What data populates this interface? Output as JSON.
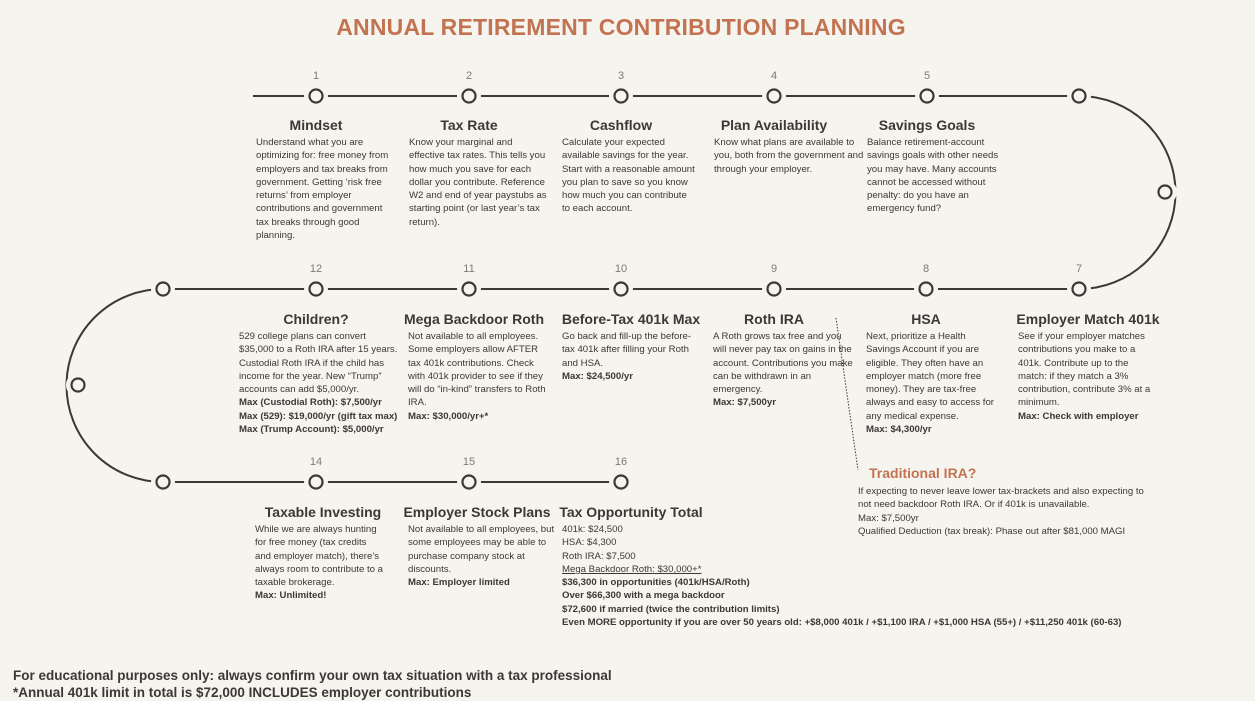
{
  "title": "ANNUAL RETIREMENT CONTRIBUTION PLANNING",
  "colors": {
    "accent": "#c27352",
    "line": "#3b3835",
    "background": "#f6f4ef"
  },
  "steps": [
    {
      "number": "1",
      "title": "Mindset",
      "lines": [
        {
          "t": "Understand what you are optimizing for: free money from employers and tax breaks from government. Getting ‘risk free returns’ from employer contributions and government tax breaks through good planning."
        }
      ]
    },
    {
      "number": "2",
      "title": "Tax Rate",
      "lines": [
        {
          "t": "Know your marginal and effective tax rates. This tells you how much you save for each dollar you contribute. Reference W2 and end of year paystubs as starting point (or last year’s tax return)."
        }
      ]
    },
    {
      "number": "3",
      "title": "Cashflow",
      "lines": [
        {
          "t": "Calculate your expected available savings for the year. Start with a reasonable amount you plan to save so you know how much you can contribute to each account."
        }
      ]
    },
    {
      "number": "4",
      "title": "Plan Availability",
      "lines": [
        {
          "t": "Know what plans are available to you, both from the government and through your employer."
        }
      ]
    },
    {
      "number": "5",
      "title": "Savings Goals",
      "lines": [
        {
          "t": "Balance retirement-account savings goals with other needs you may have. Many accounts cannot be accessed without penalty: do you have an emergency fund?"
        }
      ]
    },
    {
      "number": "7",
      "title": "Employer Match 401k",
      "lines": [
        {
          "t": "See if your employer matches contributions you make to a 401k. Contribute up to the match: if they match a 3% contribution, contribute 3% at a minimum."
        },
        {
          "t": "Max: Check with employer",
          "bold": true
        }
      ]
    },
    {
      "number": "8",
      "title": "HSA",
      "lines": [
        {
          "t": "Next, prioritize a Health Savings Account if you are eligible. They often have an employer match (more free money). They are tax-free always and easy to access for any medical expense."
        },
        {
          "t": "Max: $4,300/yr",
          "bold": true
        }
      ]
    },
    {
      "number": "9",
      "title": "Roth IRA",
      "lines": [
        {
          "t": "A Roth grows tax free and you will never pay tax on gains in the account. Contributions you make can be withdrawn in an emergency."
        },
        {
          "t": "Max: $7,500yr",
          "bold": true
        }
      ]
    },
    {
      "number": "10",
      "title": "Before-Tax 401k Max",
      "lines": [
        {
          "t": "Go back and fill-up the before-tax 401k after filling your Roth and HSA."
        },
        {
          "t": "Max: $24,500/yr",
          "bold": true
        }
      ]
    },
    {
      "number": "11",
      "title": "Mega Backdoor Roth",
      "lines": [
        {
          "t": "Not available to all employees. Some employers allow AFTER tax 401k contributions. Check with 401k provider to see if they will do “in-kind” transfers to Roth IRA."
        },
        {
          "t": "Max: $30,000/yr+*",
          "bold": true
        }
      ]
    },
    {
      "number": "12",
      "title": "Children?",
      "lines": [
        {
          "t": "529 college plans can convert $35,000 to a Roth IRA after 15 years. Custodial Roth IRA if the child has income for the year. New “Trump” accounts can add $5,000/yr."
        },
        {
          "t": "Max (Custodial Roth): $7,500/yr",
          "bold": true
        },
        {
          "t": "Max (529): $19,000/yr (gift tax max)",
          "bold": true
        },
        {
          "t": "Max (Trump Account): $5,000/yr",
          "bold": true
        }
      ]
    },
    {
      "number": "14",
      "title": "Taxable Investing",
      "lines": [
        {
          "t": "While we are always hunting for free money (tax credits and employer match), there’s always room to contribute to a taxable brokerage."
        },
        {
          "t": "Max: Unlimited!",
          "bold": true
        }
      ]
    },
    {
      "number": "15",
      "title": "Employer Stock Plans",
      "lines": [
        {
          "t": "Not available to all employees, but some employees may be able to purchase company stock at discounts."
        },
        {
          "t": "Max: Employer limited",
          "bold": true
        }
      ]
    },
    {
      "number": "16",
      "title": "Tax Opportunity Total",
      "lines": [
        {
          "t": "401k: $24,500"
        },
        {
          "t": "HSA: $4,300"
        },
        {
          "t": "Roth IRA: $7,500"
        },
        {
          "t": "Mega Backdoor Roth: $30,000+*",
          "underline": true
        },
        {
          "t": "$36,300 in opportunities (401k/HSA/Roth)",
          "bold": true
        },
        {
          "t": "Over $66,300 with a mega backdoor",
          "bold": true
        },
        {
          "t": "$72,600 if married (twice the contribution limits)",
          "bold": true
        },
        {
          "t": "Even MORE opportunity if you are over 50 years old: +$8,000 401k / +$1,100 IRA / +$1,000 HSA (55+) / +$11,250 401k (60-63)",
          "bold": true
        }
      ]
    }
  ],
  "traditional_ira": {
    "title": "Traditional IRA?",
    "lines": [
      {
        "t": "If expecting to never leave lower tax-brackets and also expecting to not need backdoor Roth IRA. Or if 401k is unavailable."
      },
      {
        "t": "Max: $7,500yr",
        "bold": true
      },
      {
        "t": "Qualified Deduction (tax break): Phase out after $81,000 MAGI",
        "bold": true
      }
    ]
  },
  "footer": [
    "For educational purposes only: always confirm your own tax situation with a tax professional",
    "*Annual 401k limit in total is $72,000 INCLUDES employer contributions"
  ]
}
